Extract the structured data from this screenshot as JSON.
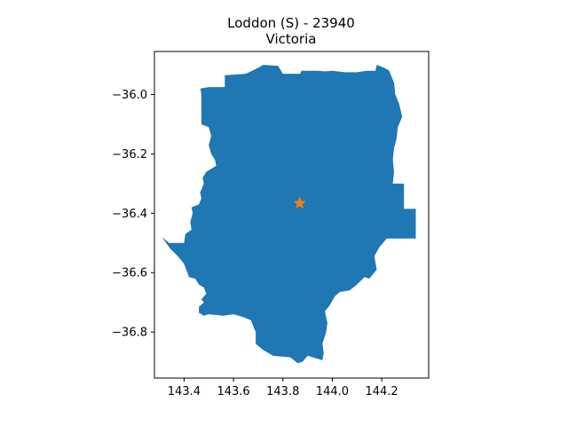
{
  "title_line1": "Loddon (S) - 23940",
  "title_line2": "Victoria",
  "chart_data": {
    "type": "map",
    "title": "Loddon (S) - 23940",
    "subtitle": "Victoria",
    "xlim": [
      143.28,
      144.39
    ],
    "ylim": [
      -36.955,
      -35.855
    ],
    "xticks": [
      143.4,
      143.6,
      143.8,
      144.0,
      144.2
    ],
    "xtick_labels": [
      "143.4",
      "143.6",
      "143.8",
      "144.0",
      "144.2"
    ],
    "yticks": [
      -36.0,
      -36.2,
      -36.4,
      -36.6,
      -36.8
    ],
    "ytick_labels": [
      "−36.0",
      "−36.2",
      "−36.4",
      "−36.6",
      "−36.8"
    ],
    "grid": false,
    "region_color": "#1f77b4",
    "marker_color": "#ff7f0e",
    "marker_symbol": "star",
    "marker": {
      "lon": 143.868,
      "lat": -36.366
    },
    "boundary": [
      [
        143.466,
        -35.98
      ],
      [
        143.5,
        -35.975
      ],
      [
        143.565,
        -35.975
      ],
      [
        143.565,
        -35.935
      ],
      [
        143.65,
        -35.93
      ],
      [
        143.7,
        -35.91
      ],
      [
        143.72,
        -35.9
      ],
      [
        143.78,
        -35.903
      ],
      [
        143.8,
        -35.93
      ],
      [
        143.87,
        -35.93
      ],
      [
        143.875,
        -35.92
      ],
      [
        143.94,
        -35.92
      ],
      [
        143.97,
        -35.922
      ],
      [
        144.0,
        -35.92
      ],
      [
        144.05,
        -35.925
      ],
      [
        144.1,
        -35.925
      ],
      [
        144.14,
        -35.92
      ],
      [
        144.175,
        -35.92
      ],
      [
        144.18,
        -35.9
      ],
      [
        144.21,
        -35.91
      ],
      [
        144.23,
        -35.92
      ],
      [
        144.25,
        -35.96
      ],
      [
        144.255,
        -36.0
      ],
      [
        144.27,
        -36.03
      ],
      [
        144.283,
        -36.075
      ],
      [
        144.265,
        -36.11
      ],
      [
        144.26,
        -36.15
      ],
      [
        144.25,
        -36.18
      ],
      [
        144.245,
        -36.22
      ],
      [
        144.25,
        -36.26
      ],
      [
        144.245,
        -36.3
      ],
      [
        144.29,
        -36.3
      ],
      [
        144.29,
        -36.385
      ],
      [
        144.338,
        -36.385
      ],
      [
        144.338,
        -36.485
      ],
      [
        144.22,
        -36.485
      ],
      [
        144.19,
        -36.515
      ],
      [
        144.17,
        -36.545
      ],
      [
        144.18,
        -36.59
      ],
      [
        144.15,
        -36.62
      ],
      [
        144.13,
        -36.615
      ],
      [
        144.1,
        -36.64
      ],
      [
        144.07,
        -36.66
      ],
      [
        144.03,
        -36.665
      ],
      [
        144.01,
        -36.68
      ],
      [
        143.99,
        -36.71
      ],
      [
        143.97,
        -36.73
      ],
      [
        143.98,
        -36.77
      ],
      [
        143.975,
        -36.8
      ],
      [
        143.96,
        -36.84
      ],
      [
        143.965,
        -36.87
      ],
      [
        143.96,
        -36.895
      ],
      [
        143.9,
        -36.88
      ],
      [
        143.88,
        -36.9
      ],
      [
        143.86,
        -36.905
      ],
      [
        143.83,
        -36.885
      ],
      [
        143.76,
        -36.88
      ],
      [
        143.72,
        -36.86
      ],
      [
        143.69,
        -36.84
      ],
      [
        143.69,
        -36.8
      ],
      [
        143.67,
        -36.76
      ],
      [
        143.64,
        -36.75
      ],
      [
        143.6,
        -36.74
      ],
      [
        143.56,
        -36.745
      ],
      [
        143.5,
        -36.74
      ],
      [
        143.48,
        -36.745
      ],
      [
        143.46,
        -36.735
      ],
      [
        143.46,
        -36.715
      ],
      [
        143.48,
        -36.7
      ],
      [
        143.47,
        -36.69
      ],
      [
        143.49,
        -36.67
      ],
      [
        143.48,
        -36.65
      ],
      [
        143.46,
        -36.64
      ],
      [
        143.445,
        -36.62
      ],
      [
        143.42,
        -36.615
      ],
      [
        143.4,
        -36.57
      ],
      [
        143.375,
        -36.545
      ],
      [
        143.345,
        -36.52
      ],
      [
        143.31,
        -36.48
      ],
      [
        143.34,
        -36.5
      ],
      [
        143.4,
        -36.5
      ],
      [
        143.405,
        -36.47
      ],
      [
        143.43,
        -36.455
      ],
      [
        143.425,
        -36.43
      ],
      [
        143.435,
        -36.4
      ],
      [
        143.43,
        -36.38
      ],
      [
        143.46,
        -36.37
      ],
      [
        143.47,
        -36.35
      ],
      [
        143.465,
        -36.33
      ],
      [
        143.48,
        -36.3
      ],
      [
        143.475,
        -36.28
      ],
      [
        143.49,
        -36.26
      ],
      [
        143.51,
        -36.25
      ],
      [
        143.53,
        -36.24
      ],
      [
        143.525,
        -36.22
      ],
      [
        143.51,
        -36.2
      ],
      [
        143.5,
        -36.17
      ],
      [
        143.51,
        -36.14
      ],
      [
        143.5,
        -36.11
      ],
      [
        143.47,
        -36.1
      ],
      [
        143.47,
        -36.06
      ],
      [
        143.47,
        -36.0
      ]
    ]
  }
}
